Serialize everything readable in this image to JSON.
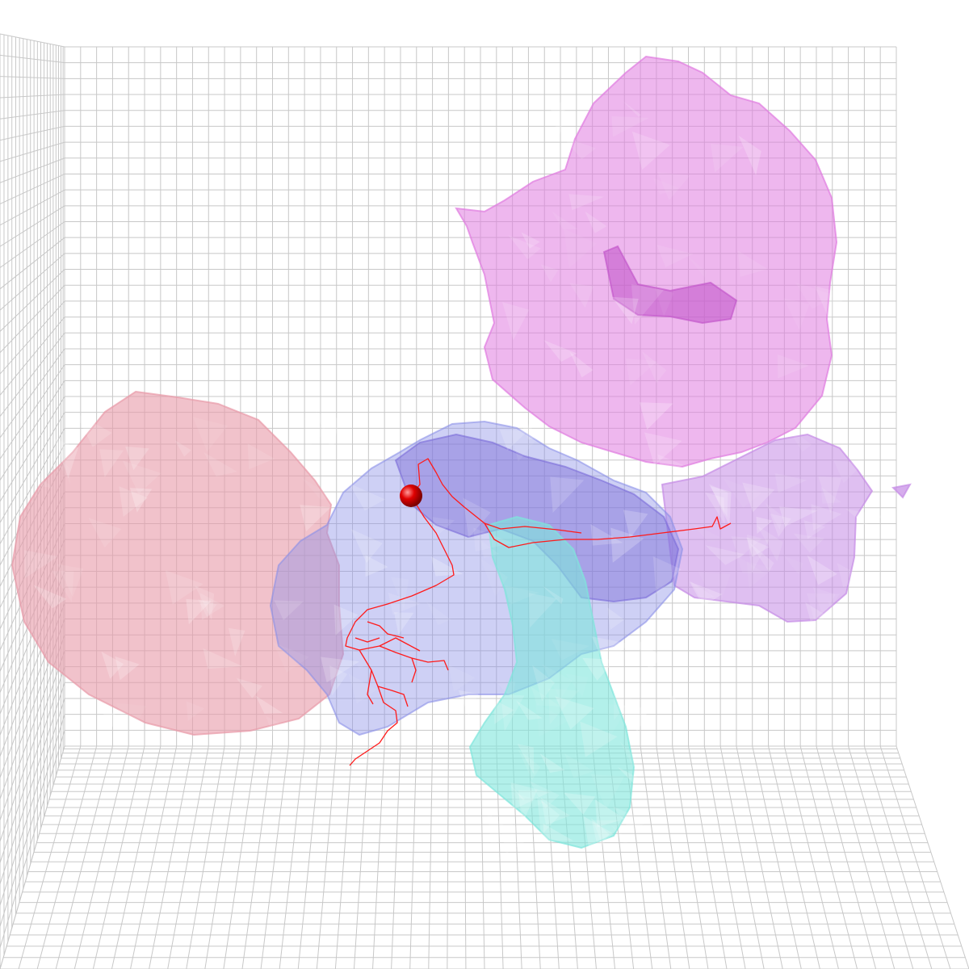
{
  "scene": {
    "background": "#ffffff",
    "grid_color": "#c8c8c8",
    "regions": [
      {
        "name": "region-magenta-top-right",
        "fill": "#e07be0"
      },
      {
        "name": "region-violet-right-lobe",
        "fill": "#c58ae6"
      },
      {
        "name": "region-blue-center",
        "fill": "#8a8fe8"
      },
      {
        "name": "region-indigo-center",
        "fill": "#7a6ad8"
      },
      {
        "name": "region-pink-left",
        "fill": "#e89aa8"
      },
      {
        "name": "region-cyan-lower",
        "fill": "#7fe6dc"
      }
    ],
    "neuron": {
      "color": "#ff1a1a",
      "soma_color": "#d40000"
    }
  }
}
